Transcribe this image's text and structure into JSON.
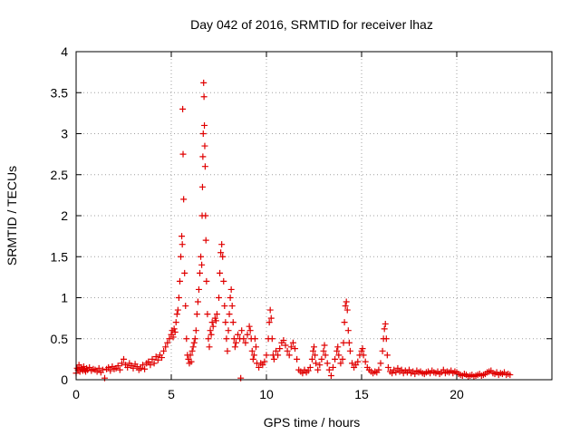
{
  "chart_data": {
    "type": "scatter",
    "title": "Day 042 of 2016, SRMTID for receiver lhaz",
    "xlabel": "GPS time / hours",
    "ylabel": "SRMTID / TECUs",
    "xlim": [
      0,
      25
    ],
    "ylim": [
      0,
      4
    ],
    "xticks": [
      0,
      5,
      10,
      15,
      20
    ],
    "yticks": [
      0,
      0.5,
      1,
      1.5,
      2,
      2.5,
      3,
      3.5,
      4
    ],
    "grid": true,
    "marker": "+",
    "color": "#e00000",
    "series": [
      {
        "name": "SRMTID",
        "points": [
          [
            0.0,
            0.08
          ],
          [
            0.05,
            0.14
          ],
          [
            0.1,
            0.12
          ],
          [
            0.15,
            0.18
          ],
          [
            0.2,
            0.1
          ],
          [
            0.25,
            0.15
          ],
          [
            0.3,
            0.13
          ],
          [
            0.35,
            0.11
          ],
          [
            0.4,
            0.16
          ],
          [
            0.45,
            0.12
          ],
          [
            0.5,
            0.1
          ],
          [
            0.55,
            0.14
          ],
          [
            0.6,
            0.12
          ],
          [
            0.7,
            0.15
          ],
          [
            0.8,
            0.11
          ],
          [
            0.9,
            0.13
          ],
          [
            1.0,
            0.12
          ],
          [
            1.1,
            0.1
          ],
          [
            1.2,
            0.14
          ],
          [
            1.3,
            0.09
          ],
          [
            1.4,
            0.12
          ],
          [
            1.5,
            0.02
          ],
          [
            1.6,
            0.13
          ],
          [
            1.7,
            0.15
          ],
          [
            1.8,
            0.11
          ],
          [
            1.9,
            0.16
          ],
          [
            2.0,
            0.13
          ],
          [
            2.1,
            0.14
          ],
          [
            2.2,
            0.17
          ],
          [
            2.3,
            0.12
          ],
          [
            2.4,
            0.2
          ],
          [
            2.5,
            0.25
          ],
          [
            2.6,
            0.18
          ],
          [
            2.7,
            0.15
          ],
          [
            2.8,
            0.2
          ],
          [
            2.9,
            0.17
          ],
          [
            3.0,
            0.14
          ],
          [
            3.1,
            0.19
          ],
          [
            3.2,
            0.16
          ],
          [
            3.3,
            0.12
          ],
          [
            3.4,
            0.14
          ],
          [
            3.5,
            0.18
          ],
          [
            3.6,
            0.13
          ],
          [
            3.7,
            0.2
          ],
          [
            3.8,
            0.22
          ],
          [
            3.9,
            0.18
          ],
          [
            4.0,
            0.25
          ],
          [
            4.1,
            0.2
          ],
          [
            4.2,
            0.28
          ],
          [
            4.3,
            0.24
          ],
          [
            4.4,
            0.3
          ],
          [
            4.5,
            0.27
          ],
          [
            4.6,
            0.35
          ],
          [
            4.7,
            0.4
          ],
          [
            4.8,
            0.45
          ],
          [
            4.9,
            0.5
          ],
          [
            5.0,
            0.55
          ],
          [
            5.05,
            0.6
          ],
          [
            5.1,
            0.52
          ],
          [
            5.15,
            0.62
          ],
          [
            5.2,
            0.58
          ],
          [
            5.25,
            0.7
          ],
          [
            5.3,
            0.8
          ],
          [
            5.35,
            0.85
          ],
          [
            5.4,
            1.0
          ],
          [
            5.45,
            1.2
          ],
          [
            5.5,
            1.5
          ],
          [
            5.55,
            1.75
          ],
          [
            5.58,
            1.65
          ],
          [
            5.6,
            3.3
          ],
          [
            5.62,
            2.75
          ],
          [
            5.65,
            2.2
          ],
          [
            5.7,
            1.3
          ],
          [
            5.75,
            0.9
          ],
          [
            5.8,
            0.5
          ],
          [
            5.85,
            0.3
          ],
          [
            5.9,
            0.25
          ],
          [
            5.95,
            0.2
          ],
          [
            6.0,
            0.3
          ],
          [
            6.05,
            0.22
          ],
          [
            6.1,
            0.35
          ],
          [
            6.15,
            0.4
          ],
          [
            6.2,
            0.45
          ],
          [
            6.25,
            0.5
          ],
          [
            6.3,
            0.6
          ],
          [
            6.35,
            0.8
          ],
          [
            6.4,
            0.95
          ],
          [
            6.45,
            1.1
          ],
          [
            6.5,
            1.3
          ],
          [
            6.55,
            1.5
          ],
          [
            6.6,
            1.4
          ],
          [
            6.62,
            2.0
          ],
          [
            6.64,
            2.35
          ],
          [
            6.66,
            2.72
          ],
          [
            6.68,
            3.0
          ],
          [
            6.7,
            3.62
          ],
          [
            6.72,
            3.45
          ],
          [
            6.74,
            3.1
          ],
          [
            6.76,
            2.85
          ],
          [
            6.78,
            2.6
          ],
          [
            6.8,
            2.0
          ],
          [
            6.82,
            1.7
          ],
          [
            6.85,
            1.2
          ],
          [
            6.9,
            0.8
          ],
          [
            6.95,
            0.5
          ],
          [
            7.0,
            0.4
          ],
          [
            7.05,
            0.6
          ],
          [
            7.1,
            0.55
          ],
          [
            7.15,
            0.7
          ],
          [
            7.2,
            0.65
          ],
          [
            7.3,
            0.75
          ],
          [
            7.35,
            0.72
          ],
          [
            7.4,
            0.8
          ],
          [
            7.5,
            1.0
          ],
          [
            7.55,
            1.3
          ],
          [
            7.6,
            1.55
          ],
          [
            7.65,
            1.65
          ],
          [
            7.7,
            1.5
          ],
          [
            7.75,
            1.2
          ],
          [
            7.8,
            0.9
          ],
          [
            7.85,
            0.7
          ],
          [
            7.9,
            0.5
          ],
          [
            7.95,
            0.35
          ],
          [
            8.0,
            0.6
          ],
          [
            8.05,
            0.8
          ],
          [
            8.1,
            1.0
          ],
          [
            8.15,
            1.1
          ],
          [
            8.2,
            0.9
          ],
          [
            8.25,
            0.7
          ],
          [
            8.3,
            0.5
          ],
          [
            8.35,
            0.4
          ],
          [
            8.4,
            0.45
          ],
          [
            8.5,
            0.55
          ],
          [
            8.6,
            0.5
          ],
          [
            8.65,
            0.02
          ],
          [
            8.7,
            0.6
          ],
          [
            8.8,
            0.5
          ],
          [
            8.9,
            0.45
          ],
          [
            9.0,
            0.55
          ],
          [
            9.1,
            0.65
          ],
          [
            9.15,
            0.6
          ],
          [
            9.2,
            0.5
          ],
          [
            9.25,
            0.35
          ],
          [
            9.3,
            0.25
          ],
          [
            9.35,
            0.3
          ],
          [
            9.4,
            0.5
          ],
          [
            9.45,
            0.4
          ],
          [
            9.5,
            0.2
          ],
          [
            9.6,
            0.15
          ],
          [
            9.7,
            0.2
          ],
          [
            9.8,
            0.18
          ],
          [
            9.9,
            0.22
          ],
          [
            10.0,
            0.3
          ],
          [
            10.1,
            0.5
          ],
          [
            10.15,
            0.7
          ],
          [
            10.2,
            0.85
          ],
          [
            10.25,
            0.75
          ],
          [
            10.3,
            0.5
          ],
          [
            10.35,
            0.3
          ],
          [
            10.4,
            0.25
          ],
          [
            10.5,
            0.35
          ],
          [
            10.6,
            0.3
          ],
          [
            10.7,
            0.38
          ],
          [
            10.8,
            0.45
          ],
          [
            10.9,
            0.48
          ],
          [
            11.0,
            0.42
          ],
          [
            11.1,
            0.35
          ],
          [
            11.2,
            0.3
          ],
          [
            11.3,
            0.4
          ],
          [
            11.4,
            0.45
          ],
          [
            11.5,
            0.38
          ],
          [
            11.6,
            0.25
          ],
          [
            11.7,
            0.12
          ],
          [
            11.8,
            0.1
          ],
          [
            11.9,
            0.08
          ],
          [
            12.0,
            0.12
          ],
          [
            12.1,
            0.09
          ],
          [
            12.2,
            0.11
          ],
          [
            12.3,
            0.15
          ],
          [
            12.4,
            0.25
          ],
          [
            12.45,
            0.35
          ],
          [
            12.5,
            0.4
          ],
          [
            12.55,
            0.3
          ],
          [
            12.6,
            0.2
          ],
          [
            12.7,
            0.12
          ],
          [
            12.8,
            0.18
          ],
          [
            12.9,
            0.25
          ],
          [
            13.0,
            0.35
          ],
          [
            13.05,
            0.42
          ],
          [
            13.1,
            0.3
          ],
          [
            13.2,
            0.2
          ],
          [
            13.3,
            0.12
          ],
          [
            13.4,
            0.05
          ],
          [
            13.5,
            0.15
          ],
          [
            13.6,
            0.25
          ],
          [
            13.7,
            0.35
          ],
          [
            13.75,
            0.4
          ],
          [
            13.8,
            0.3
          ],
          [
            13.9,
            0.2
          ],
          [
            14.0,
            0.25
          ],
          [
            14.05,
            0.45
          ],
          [
            14.1,
            0.7
          ],
          [
            14.15,
            0.9
          ],
          [
            14.2,
            0.95
          ],
          [
            14.25,
            0.85
          ],
          [
            14.3,
            0.6
          ],
          [
            14.35,
            0.45
          ],
          [
            14.4,
            0.35
          ],
          [
            14.5,
            0.2
          ],
          [
            14.6,
            0.15
          ],
          [
            14.7,
            0.18
          ],
          [
            14.8,
            0.22
          ],
          [
            14.9,
            0.3
          ],
          [
            15.0,
            0.35
          ],
          [
            15.05,
            0.38
          ],
          [
            15.1,
            0.3
          ],
          [
            15.2,
            0.22
          ],
          [
            15.3,
            0.15
          ],
          [
            15.4,
            0.12
          ],
          [
            15.5,
            0.1
          ],
          [
            15.6,
            0.08
          ],
          [
            15.7,
            0.1
          ],
          [
            15.8,
            0.09
          ],
          [
            15.9,
            0.12
          ],
          [
            16.0,
            0.2
          ],
          [
            16.1,
            0.35
          ],
          [
            16.15,
            0.5
          ],
          [
            16.2,
            0.62
          ],
          [
            16.25,
            0.68
          ],
          [
            16.3,
            0.5
          ],
          [
            16.35,
            0.3
          ],
          [
            16.4,
            0.15
          ],
          [
            16.5,
            0.1
          ],
          [
            16.6,
            0.08
          ],
          [
            16.7,
            0.12
          ],
          [
            16.8,
            0.09
          ],
          [
            16.9,
            0.14
          ],
          [
            17.0,
            0.1
          ],
          [
            17.1,
            0.12
          ],
          [
            17.2,
            0.08
          ],
          [
            17.3,
            0.11
          ],
          [
            17.4,
            0.09
          ],
          [
            17.5,
            0.12
          ],
          [
            17.6,
            0.08
          ],
          [
            17.7,
            0.1
          ],
          [
            17.8,
            0.07
          ],
          [
            17.9,
            0.11
          ],
          [
            18.0,
            0.09
          ],
          [
            18.1,
            0.1
          ],
          [
            18.2,
            0.08
          ],
          [
            18.3,
            0.07
          ],
          [
            18.4,
            0.09
          ],
          [
            18.5,
            0.1
          ],
          [
            18.6,
            0.08
          ],
          [
            18.7,
            0.11
          ],
          [
            18.8,
            0.09
          ],
          [
            18.9,
            0.08
          ],
          [
            19.0,
            0.1
          ],
          [
            19.1,
            0.07
          ],
          [
            19.2,
            0.09
          ],
          [
            19.3,
            0.12
          ],
          [
            19.4,
            0.08
          ],
          [
            19.5,
            0.1
          ],
          [
            19.6,
            0.09
          ],
          [
            19.7,
            0.11
          ],
          [
            19.8,
            0.08
          ],
          [
            19.9,
            0.1
          ],
          [
            20.0,
            0.09
          ],
          [
            20.1,
            0.07
          ],
          [
            20.2,
            0.06
          ],
          [
            20.3,
            0.05
          ],
          [
            20.4,
            0.07
          ],
          [
            20.5,
            0.06
          ],
          [
            20.6,
            0.04
          ],
          [
            20.7,
            0.05
          ],
          [
            20.8,
            0.06
          ],
          [
            20.9,
            0.04
          ],
          [
            21.0,
            0.05
          ],
          [
            21.1,
            0.06
          ],
          [
            21.2,
            0.07
          ],
          [
            21.3,
            0.05
          ],
          [
            21.4,
            0.06
          ],
          [
            21.5,
            0.07
          ],
          [
            21.6,
            0.09
          ],
          [
            21.7,
            0.1
          ],
          [
            21.8,
            0.11
          ],
          [
            21.9,
            0.08
          ],
          [
            22.0,
            0.07
          ],
          [
            22.1,
            0.09
          ],
          [
            22.2,
            0.06
          ],
          [
            22.3,
            0.08
          ],
          [
            22.4,
            0.07
          ],
          [
            22.5,
            0.09
          ],
          [
            22.6,
            0.06
          ],
          [
            22.7,
            0.07
          ],
          [
            22.8,
            0.06
          ]
        ]
      }
    ]
  }
}
